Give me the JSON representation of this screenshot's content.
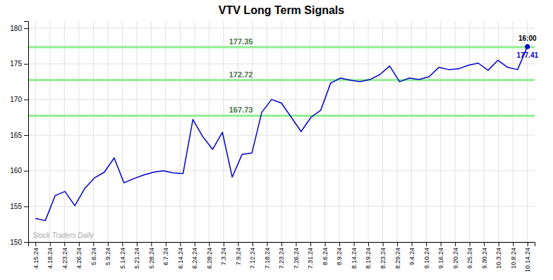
{
  "chart_data": {
    "type": "line",
    "title": "VTV Long Term Signals",
    "color": "#0000cc",
    "grid": true,
    "x": [
      0,
      0.68,
      1.36,
      2.04,
      2.72,
      3.4,
      4.08,
      4.76,
      5.44,
      6.12,
      6.8,
      7.48,
      8.16,
      8.84,
      9.52,
      10.2,
      10.88,
      11.56,
      12.24,
      12.92,
      13.6,
      14.28,
      14.96,
      15.64,
      16.32,
      17,
      17.68,
      18.36,
      19.04,
      19.72,
      20.4,
      21.08,
      21.76,
      22.44,
      23.12,
      23.8,
      24.48,
      25.16,
      25.84,
      26.52,
      27.2,
      27.88,
      28.56,
      29.24,
      29.92,
      30.6,
      31.28,
      31.96,
      32.64,
      33.32,
      34
    ],
    "values": [
      153.3,
      153.0,
      156.5,
      157.1,
      155.1,
      157.5,
      159.0,
      159.8,
      161.8,
      158.3,
      158.9,
      159.4,
      159.8,
      160.0,
      159.7,
      159.6,
      167.2,
      164.8,
      163.0,
      165.4,
      159.1,
      162.3,
      162.5,
      168.2,
      170.0,
      169.5,
      167.5,
      165.5,
      167.5,
      168.5,
      172.3,
      173.0,
      172.7,
      172.5,
      172.8,
      173.5,
      174.7,
      172.5,
      173.0,
      172.8,
      173.2,
      174.5,
      174.2,
      174.3,
      174.8,
      175.1,
      174.1,
      175.5,
      174.5,
      174.2,
      177.41
    ],
    "xlim": [
      -0.5,
      34.5
    ],
    "xticks": [
      {
        "value": 0,
        "label": "4.15.24"
      },
      {
        "value": 1,
        "label": "4.18.24"
      },
      {
        "value": 2,
        "label": "4.23.24"
      },
      {
        "value": 3,
        "label": "4.26.24"
      },
      {
        "value": 4,
        "label": "5.6.24"
      },
      {
        "value": 5,
        "label": "5.9.24"
      },
      {
        "value": 6,
        "label": "5.14.24"
      },
      {
        "value": 7,
        "label": "5.21.24"
      },
      {
        "value": 8,
        "label": "5.28.24"
      },
      {
        "value": 9,
        "label": "6.7.24"
      },
      {
        "value": 10,
        "label": "6.14.24"
      },
      {
        "value": 11,
        "label": "6.24.24"
      },
      {
        "value": 12,
        "label": "6.28.24"
      },
      {
        "value": 13,
        "label": "7.3.24"
      },
      {
        "value": 14,
        "label": "7.9.24"
      },
      {
        "value": 15,
        "label": "7.12.24"
      },
      {
        "value": 16,
        "label": "7.18.24"
      },
      {
        "value": 17,
        "label": "7.23.24"
      },
      {
        "value": 18,
        "label": "7.26.24"
      },
      {
        "value": 19,
        "label": "7.31.24"
      },
      {
        "value": 20,
        "label": "8.6.24"
      },
      {
        "value": 21,
        "label": "8.9.24"
      },
      {
        "value": 22,
        "label": "8.14.24"
      },
      {
        "value": 23,
        "label": "8.19.24"
      },
      {
        "value": 24,
        "label": "8.23.24"
      },
      {
        "value": 25,
        "label": "8.29.24"
      },
      {
        "value": 26,
        "label": "9.4.24"
      },
      {
        "value": 27,
        "label": "9.10.24"
      },
      {
        "value": 28,
        "label": "9.16.24"
      },
      {
        "value": 29,
        "label": "9.20.24"
      },
      {
        "value": 30,
        "label": "9.25.24"
      },
      {
        "value": 31,
        "label": "9.30.24"
      },
      {
        "value": 32,
        "label": "10.3.24"
      },
      {
        "value": 33,
        "label": "10.8.24"
      },
      {
        "value": 34,
        "label": "10.14.24"
      }
    ],
    "ylim": [
      150,
      181
    ],
    "yticks": [
      150,
      155,
      160,
      165,
      170,
      175,
      180
    ],
    "hlines": [
      {
        "y": 177.35,
        "label": "177.35",
        "color": "#90ee90"
      },
      {
        "y": 172.72,
        "label": "172.72",
        "color": "#90ee90"
      },
      {
        "y": 167.73,
        "label": "167.73",
        "color": "#90ee90"
      }
    ],
    "annotations": [
      {
        "text": "Stock Traders Daily"
      },
      {
        "text": "16:00"
      },
      {
        "text": "177.41"
      }
    ]
  }
}
